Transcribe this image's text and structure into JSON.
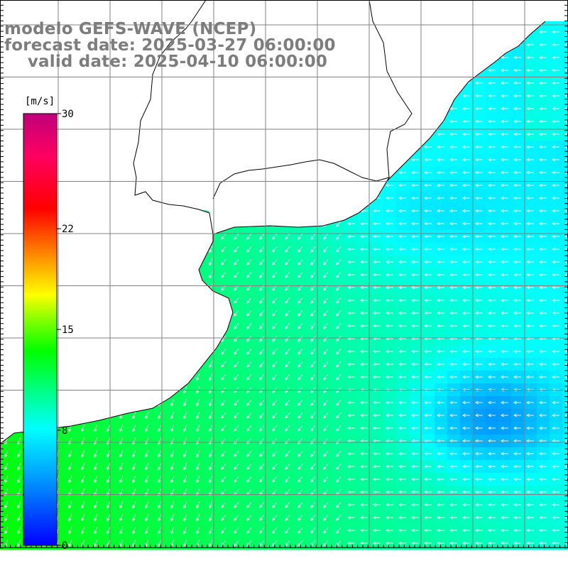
{
  "title": {
    "line1": "modelo GEFS-WAVE (NCEP)",
    "line2": "forecast date: 2025-03-27 06:00:00",
    "line3": "    valid date: 2025-04-10 06:00:00"
  },
  "colorbar": {
    "unit": "[m/s]",
    "ticks": [
      {
        "value": 30,
        "label": "30"
      },
      {
        "value": 22,
        "label": "22"
      },
      {
        "value": 15,
        "label": "15"
      },
      {
        "value": 8,
        "label": "8"
      },
      {
        "value": 0,
        "label": "0"
      }
    ],
    "min": 0,
    "max": 30,
    "colors": [
      "#0000ff",
      "#0096ff",
      "#00ffff",
      "#00ff80",
      "#00ff00",
      "#c0ff00",
      "#ffff00",
      "#ff8000",
      "#ff0000",
      "#ff0080",
      "#c0007a"
    ]
  },
  "field": {
    "variable": "wind speed",
    "wind_direction_note": "arrows point mostly west in the east half and southwest in the west half"
  },
  "grid": {
    "color": "#808080"
  },
  "colors": {
    "land": "#ffffff",
    "coast": "#000000",
    "arrow": "#ffffff"
  }
}
